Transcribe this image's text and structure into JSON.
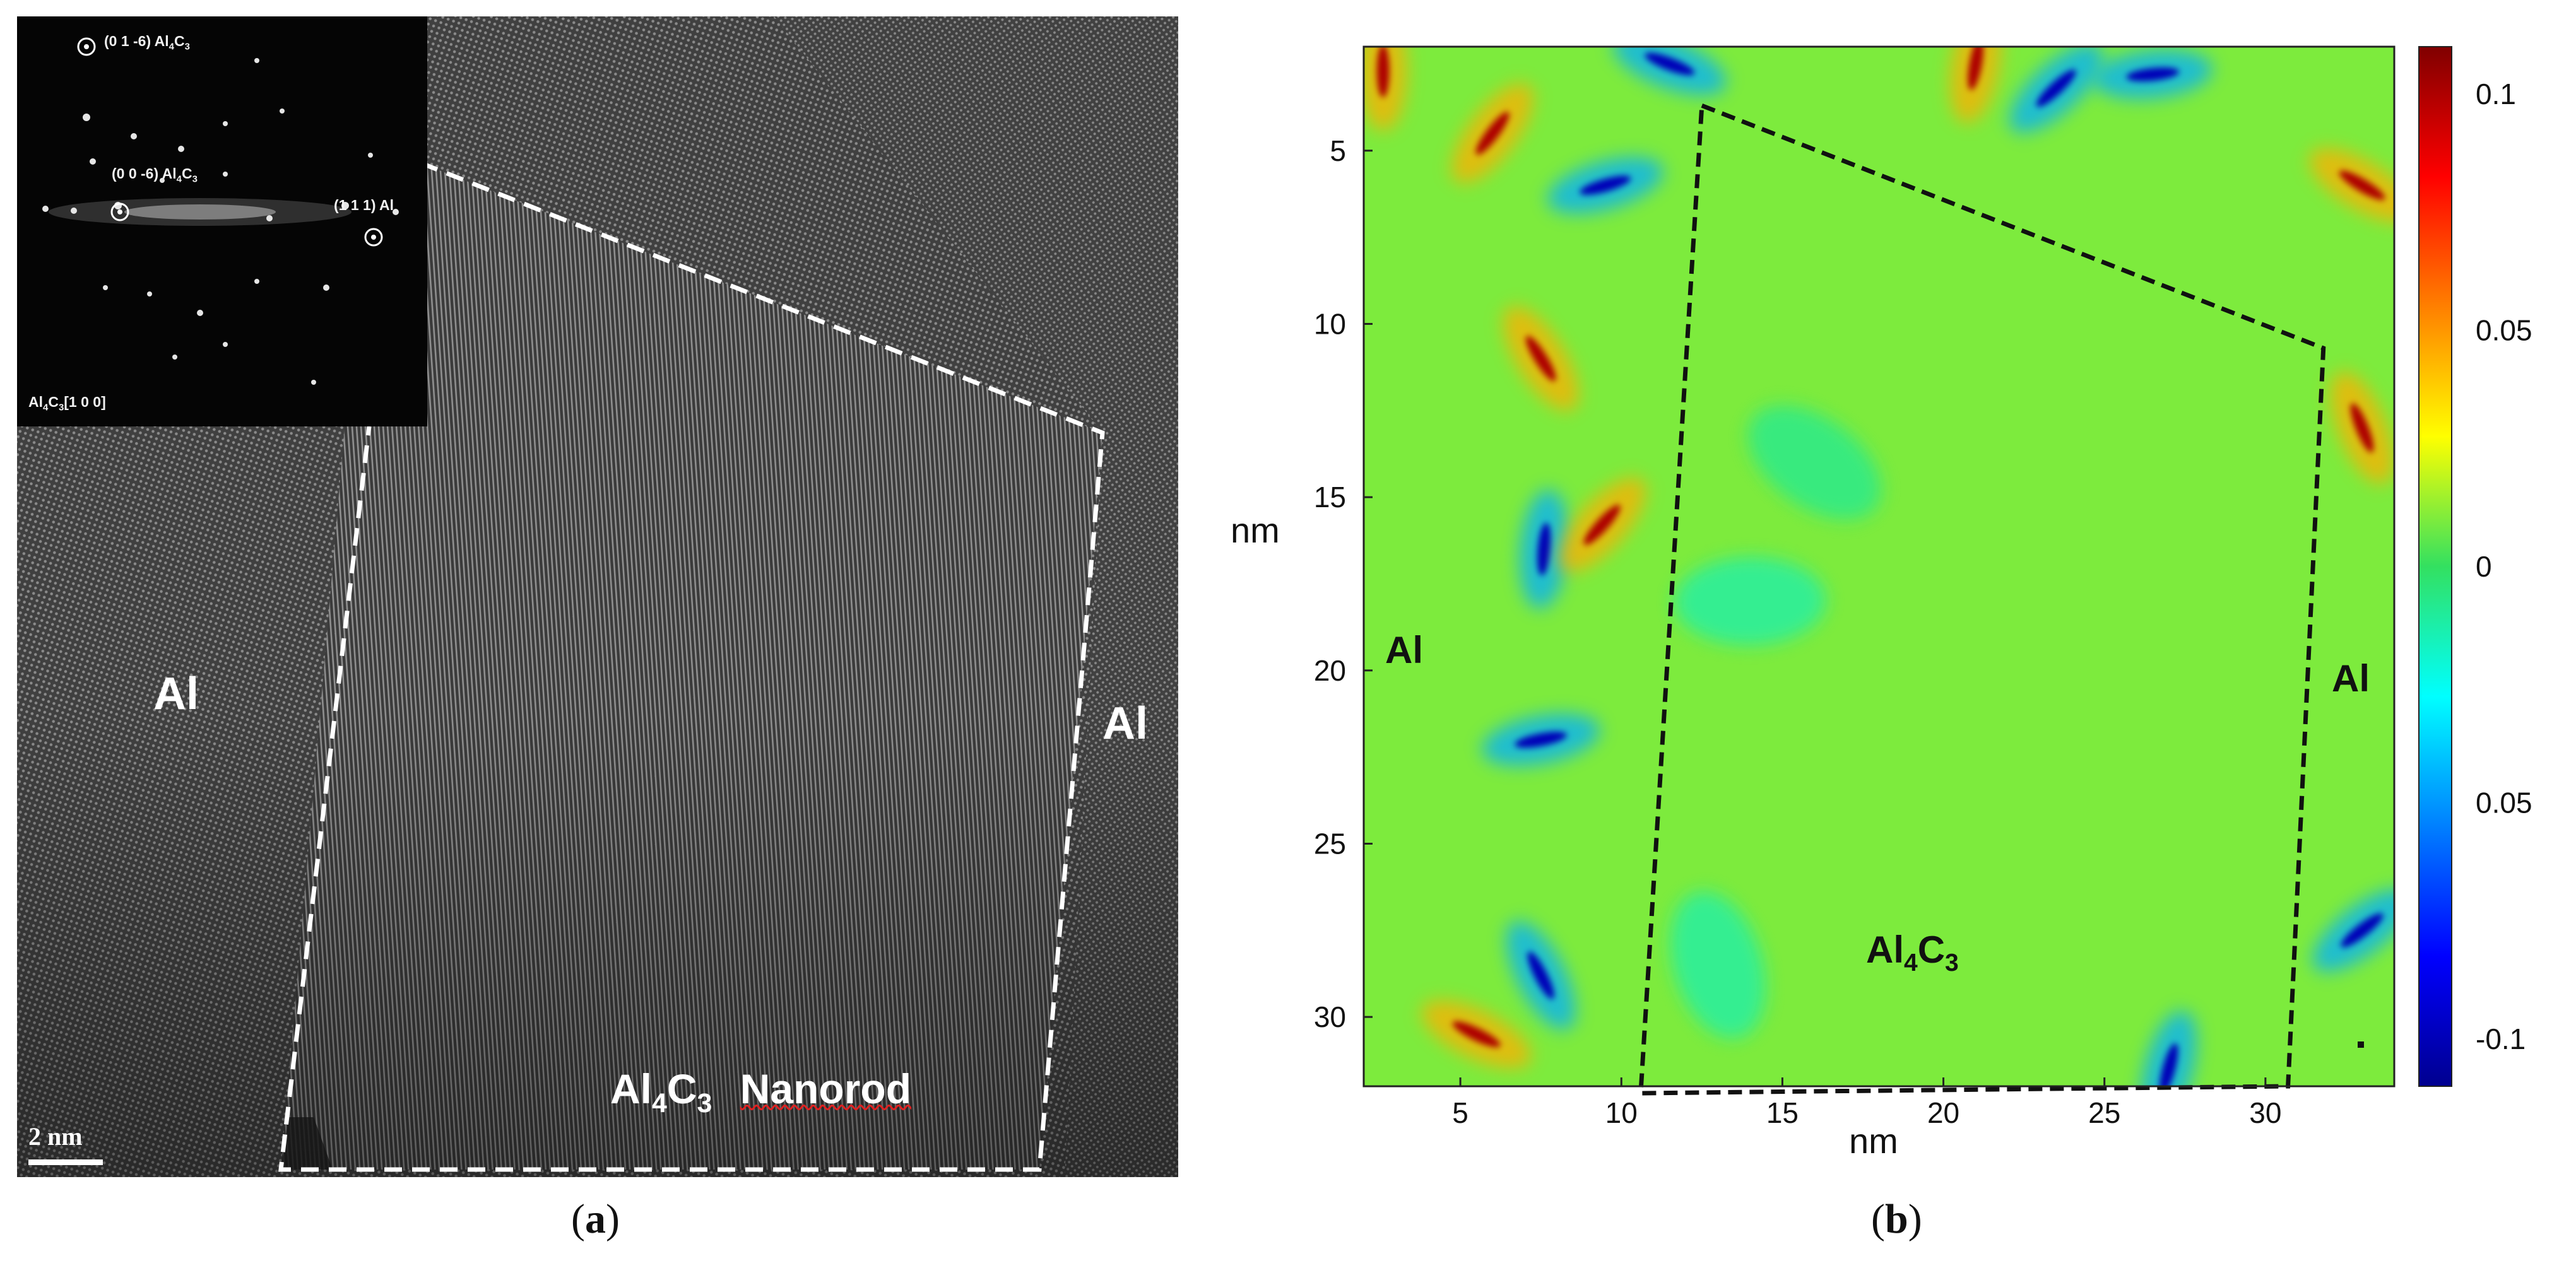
{
  "panel_a": {
    "caption": "a",
    "label_al_left": "Al",
    "label_al_right": "Al",
    "label_nanorod_main": "Al",
    "label_nanorod_sub1": "4",
    "label_nanorod_mid": "C",
    "label_nanorod_sub2": "3",
    "label_nanorod_word": "Nanorod",
    "scale_bar": "2 nm",
    "inset": {
      "spot1_a": "(0 1 -6) Al",
      "spot1_sub1": "4",
      "spot1_b": "C",
      "spot1_sub2": "3",
      "spot2_a": "(0 0 -6) Al",
      "spot2_sub1": "4",
      "spot2_b": "C",
      "spot2_sub2": "3",
      "spot3": "(1 1 1) Al",
      "zone_a": "Al",
      "zone_sub1": "4",
      "zone_b": "C",
      "zone_sub2": "3",
      "zone_c": "[1 0 0]"
    }
  },
  "panel_b": {
    "caption": "b",
    "x_label": "nm",
    "y_label": "nm",
    "label_al_left": "Al",
    "label_al_right": "Al",
    "label_region_a": "Al",
    "label_region_sub1": "4",
    "label_region_b": "C",
    "label_region_sub2": "3",
    "colorbar_ticks": [
      "0.1",
      "0.05",
      "0",
      "0.05",
      "-0.1"
    ]
  },
  "chart_data": {
    "type": "heatmap",
    "title": "",
    "xlabel": "nm",
    "ylabel": "nm",
    "x_ticks": [
      5,
      10,
      15,
      20,
      25,
      30
    ],
    "y_ticks": [
      5,
      10,
      15,
      20,
      25,
      30
    ],
    "xlim": [
      2,
      34
    ],
    "ylim": [
      2,
      32
    ],
    "y_axis_inverted": true,
    "colorbar": {
      "min": -0.11,
      "max": 0.11,
      "colormap": "jet",
      "tick_labels": [
        "0.1",
        "0.05",
        "0",
        "0.05",
        "-0.1"
      ]
    },
    "background_value": 0.01,
    "strain_features": [
      {
        "x": 2.6,
        "y": 2.7,
        "value": 0.1
      },
      {
        "x": 6.0,
        "y": 4.5,
        "value": 0.1
      },
      {
        "x": 9.5,
        "y": 6.0,
        "value": -0.1
      },
      {
        "x": 11.5,
        "y": 2.5,
        "value": -0.1
      },
      {
        "x": 7.5,
        "y": 11.0,
        "value": 0.1
      },
      {
        "x": 7.6,
        "y": 16.5,
        "value": -0.1
      },
      {
        "x": 9.4,
        "y": 15.8,
        "value": 0.1
      },
      {
        "x": 7.5,
        "y": 22.0,
        "value": -0.1
      },
      {
        "x": 5.5,
        "y": 30.5,
        "value": 0.1
      },
      {
        "x": 7.5,
        "y": 28.8,
        "value": -0.1
      },
      {
        "x": 21.0,
        "y": 2.5,
        "value": 0.1
      },
      {
        "x": 23.5,
        "y": 3.2,
        "value": -0.1
      },
      {
        "x": 26.5,
        "y": 2.8,
        "value": -0.1
      },
      {
        "x": 33.0,
        "y": 6.0,
        "value": 0.1
      },
      {
        "x": 33.0,
        "y": 13.0,
        "value": 0.1
      },
      {
        "x": 27.0,
        "y": 31.5,
        "value": -0.1
      },
      {
        "x": 33.0,
        "y": 27.5,
        "value": -0.1
      },
      {
        "x": 14.0,
        "y": 18.0,
        "value": -0.03
      },
      {
        "x": 16.0,
        "y": 14.0,
        "value": -0.02
      },
      {
        "x": 13.0,
        "y": 28.5,
        "value": -0.03
      }
    ],
    "boundary_polygon": [
      [
        12.5,
        3.7
      ],
      [
        31.8,
        10.7
      ],
      [
        30.7,
        32.0
      ],
      [
        10.6,
        32.2
      ]
    ]
  }
}
